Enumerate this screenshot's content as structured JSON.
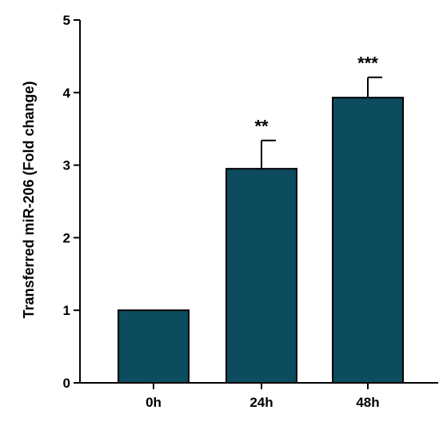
{
  "chart_data": {
    "type": "bar",
    "categories": [
      "0h",
      "24h",
      "48h"
    ],
    "values": [
      1.0,
      2.95,
      3.93
    ],
    "errors": [
      0,
      0.39,
      0.28
    ],
    "annotations": [
      "",
      "**",
      "***"
    ],
    "ylabel": "Transferred miR-206 (Fold change)",
    "xlabel": "",
    "ylim": [
      0,
      5
    ],
    "yticks": [
      "0",
      "1",
      "2",
      "3",
      "4",
      "5"
    ],
    "bar_color": "#0d4b5e",
    "grid": false,
    "legend": "none"
  }
}
